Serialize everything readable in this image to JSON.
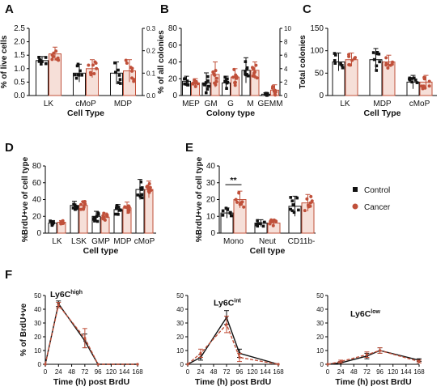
{
  "legend": {
    "control": "Control",
    "cancer": "Cancer",
    "control_color": "#111111",
    "cancer_color": "#c0503a"
  },
  "chart_data": [
    {
      "panel": "A",
      "type": "bar",
      "ylabel": "% of live cells",
      "xlabel": "Cell Type",
      "categories": [
        "LK",
        "cMoP",
        "MDP"
      ],
      "ylim": [
        0,
        2.5
      ],
      "yticks": [
        "0.0",
        "0.5",
        "1.0",
        "1.5",
        "2.0",
        "2.5"
      ],
      "y2lim": [
        0,
        0.3
      ],
      "y2ticks": [
        "0.0",
        "0.1",
        "0.2",
        "0.3"
      ],
      "axis_per_category": [
        "left",
        "right",
        "right"
      ],
      "series": [
        {
          "name": "Control",
          "values": [
            1.3,
            0.1,
            0.1
          ],
          "err": [
            0.15,
            0.04,
            0.05
          ]
        },
        {
          "name": "Cancer",
          "values": [
            1.55,
            0.12,
            0.11
          ],
          "err": [
            0.25,
            0.04,
            0.05
          ]
        }
      ]
    },
    {
      "panel": "B",
      "type": "bar",
      "ylabel": "% of all colonies",
      "xlabel": "Colony type",
      "categories": [
        "MEP",
        "GM",
        "G",
        "M",
        "GEMM"
      ],
      "ylim": [
        0,
        80
      ],
      "yticks": [
        "0",
        "20",
        "40",
        "60",
        "80"
      ],
      "y2lim": [
        0,
        10
      ],
      "y2ticks": [
        "0",
        "2",
        "4",
        "6",
        "8",
        "10"
      ],
      "axis_per_category": [
        "left",
        "left",
        "left",
        "left",
        "right"
      ],
      "series": [
        {
          "name": "Control",
          "values": [
            17,
            15,
            15,
            30,
            0.2
          ],
          "err": [
            6,
            12,
            8,
            15,
            0.2
          ]
        },
        {
          "name": "Cancer",
          "values": [
            15,
            25,
            22,
            30,
            0.8
          ],
          "err": [
            5,
            15,
            10,
            10,
            0.8
          ]
        }
      ]
    },
    {
      "panel": "C",
      "type": "bar",
      "ylabel": "Total colonies",
      "xlabel": "Cell Type",
      "categories": [
        "LK",
        "MDP",
        "cMoP"
      ],
      "ylim": [
        0,
        150
      ],
      "yticks": [
        "0",
        "50",
        "100",
        "150"
      ],
      "series": [
        {
          "name": "Control",
          "values": [
            75,
            80,
            30
          ],
          "err": [
            20,
            25,
            15
          ]
        },
        {
          "name": "Cancer",
          "values": [
            80,
            75,
            30
          ],
          "err": [
            15,
            15,
            15
          ]
        }
      ]
    },
    {
      "panel": "D",
      "type": "bar",
      "ylabel": "%BrdU+ve of cell type",
      "xlabel": "Cell type",
      "categories": [
        "LK",
        "LSK",
        "GMP",
        "MDP",
        "cMoP"
      ],
      "ylim": [
        0,
        80
      ],
      "yticks": [
        "0",
        "20",
        "40",
        "60",
        "80"
      ],
      "series": [
        {
          "name": "Control",
          "values": [
            12,
            33,
            20,
            28,
            52
          ],
          "err": [
            3,
            5,
            6,
            6,
            12
          ]
        },
        {
          "name": "Cancer",
          "values": [
            13,
            33,
            19,
            30,
            52
          ],
          "err": [
            2,
            5,
            5,
            7,
            10
          ]
        }
      ]
    },
    {
      "panel": "E",
      "type": "bar",
      "ylabel": "%BrdU+ve of cell type",
      "xlabel": "Cell type",
      "categories": [
        "Mono",
        "Neut",
        "CD11b-"
      ],
      "ylim": [
        0,
        40
      ],
      "yticks": [
        "0",
        "10",
        "20",
        "30",
        "40"
      ],
      "significance": "**",
      "series": [
        {
          "name": "Control",
          "values": [
            12,
            6,
            16
          ],
          "err": [
            3,
            2,
            6
          ]
        },
        {
          "name": "Cancer",
          "values": [
            20,
            6,
            18
          ],
          "err": [
            5,
            2,
            5
          ]
        }
      ]
    },
    {
      "panel": "F",
      "type": "line",
      "subtitle": "Ly6Chigh",
      "ylabel": "% of BrdU+ve",
      "xlabel": "Time (h) post BrdU",
      "x": [
        0,
        24,
        72,
        96,
        168
      ],
      "xticks": [
        "0",
        "24",
        "48",
        "72",
        "96",
        "120",
        "144",
        "168"
      ],
      "ylim": [
        0,
        50
      ],
      "yticks": [
        "0",
        "10",
        "20",
        "30",
        "40",
        "50"
      ],
      "series": [
        {
          "name": "Control",
          "values": [
            0,
            44,
            17,
            0,
            0
          ],
          "err": [
            0,
            2,
            5,
            0,
            0
          ]
        },
        {
          "name": "Cancer",
          "values": [
            0,
            43,
            19,
            0,
            0
          ],
          "err": [
            0,
            2,
            7,
            0,
            0
          ]
        }
      ]
    },
    {
      "panel": "F2",
      "type": "line",
      "subtitle": "Ly6Cint",
      "xlabel": "Time (h) post BrdU",
      "x": [
        0,
        24,
        72,
        96,
        168
      ],
      "xticks": [
        "0",
        "24",
        "48",
        "72",
        "96",
        "120",
        "144",
        "168"
      ],
      "ylim": [
        0,
        50
      ],
      "series": [
        {
          "name": "Control",
          "values": [
            0,
            5,
            34,
            8,
            0
          ],
          "err": [
            0,
            2,
            5,
            3,
            0
          ]
        },
        {
          "name": "Cancer",
          "values": [
            0,
            8,
            29,
            5,
            0
          ],
          "err": [
            0,
            3,
            6,
            3,
            0
          ]
        }
      ]
    },
    {
      "panel": "F3",
      "type": "line",
      "subtitle": "Ly6Clow",
      "xlabel": "Time (h) post BrdU",
      "x": [
        0,
        24,
        72,
        96,
        168
      ],
      "xticks": [
        "0",
        "24",
        "48",
        "72",
        "96",
        "120",
        "144",
        "168"
      ],
      "ylim": [
        0,
        50
      ],
      "series": [
        {
          "name": "Control",
          "values": [
            0,
            1,
            6,
            10,
            3
          ],
          "err": [
            0,
            1,
            2,
            2,
            1
          ]
        },
        {
          "name": "Cancer",
          "values": [
            0,
            2,
            7,
            10,
            2
          ],
          "err": [
            0,
            1,
            2,
            2,
            1
          ]
        }
      ]
    }
  ]
}
